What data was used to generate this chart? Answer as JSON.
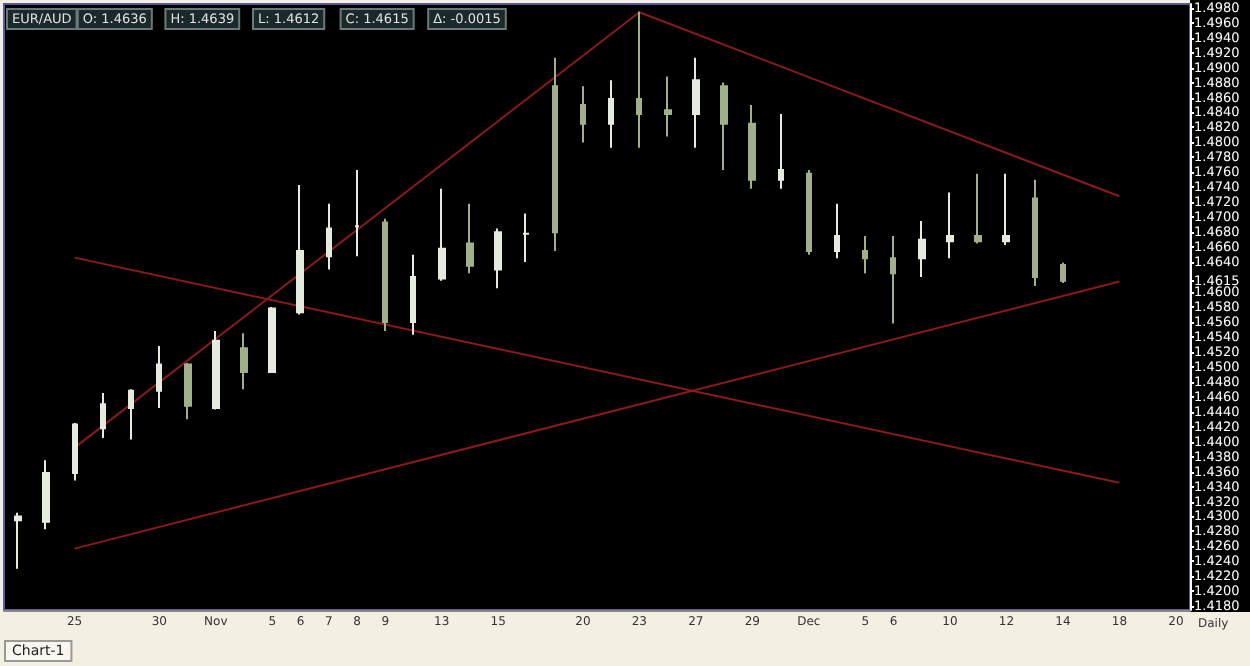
{
  "chart_data": {
    "type": "candlestick",
    "title": "EUR/AUD",
    "categories": [
      null,
      null,
      "25",
      null,
      null,
      "30",
      null,
      "Nov",
      null,
      "5",
      "6",
      "7",
      "8",
      "9",
      null,
      "13",
      null,
      "15",
      null,
      null,
      "20",
      null,
      "23",
      null,
      "27",
      null,
      "29",
      null,
      "Dec",
      null,
      "5",
      "6",
      null,
      "10",
      null,
      "12",
      null,
      "14",
      null,
      "18",
      null,
      "20"
    ],
    "ohlc": [
      [
        1.4295,
        1.4305,
        1.423,
        1.43
      ],
      [
        1.4293,
        1.4375,
        1.4283,
        1.4358
      ],
      [
        1.4358,
        1.4425,
        1.4348,
        1.4423
      ],
      [
        1.4418,
        1.4465,
        1.4405,
        1.445
      ],
      [
        1.4445,
        1.447,
        1.4403,
        1.4468
      ],
      [
        1.4468,
        1.4528,
        1.4445,
        1.4503
      ],
      [
        1.4503,
        1.4505,
        1.443,
        1.4448
      ],
      [
        1.4445,
        1.4548,
        1.4443,
        1.4535
      ],
      [
        1.4525,
        1.4545,
        1.447,
        1.4493
      ],
      [
        1.4493,
        1.458,
        1.4493,
        1.4578
      ],
      [
        1.4573,
        1.4743,
        1.457,
        1.4655
      ],
      [
        1.4648,
        1.4718,
        1.463,
        1.4685
      ],
      [
        1.4688,
        1.4763,
        1.4648,
        1.4688
      ],
      [
        1.4693,
        1.4698,
        1.4548,
        1.456
      ],
      [
        1.456,
        1.465,
        1.4543,
        1.462
      ],
      [
        1.4618,
        1.4738,
        1.4615,
        1.4658
      ],
      [
        1.4665,
        1.4718,
        1.4625,
        1.4635
      ],
      [
        1.463,
        1.4685,
        1.4605,
        1.468
      ],
      [
        1.4678,
        1.4705,
        1.464,
        1.4678
      ],
      [
        1.4875,
        1.4913,
        1.4655,
        1.468
      ],
      [
        1.485,
        1.4875,
        1.48,
        1.4825
      ],
      [
        1.4825,
        1.4883,
        1.4793,
        1.4858
      ],
      [
        1.4858,
        1.4975,
        1.4793,
        1.4838
      ],
      [
        1.4843,
        1.4888,
        1.4808,
        1.4838
      ],
      [
        1.4838,
        1.4913,
        1.4793,
        1.4883
      ],
      [
        1.4875,
        1.488,
        1.4763,
        1.4825
      ],
      [
        1.4825,
        1.485,
        1.4738,
        1.475
      ],
      [
        1.475,
        1.4838,
        1.4738,
        1.4763
      ],
      [
        1.4758,
        1.4763,
        1.465,
        1.4655
      ],
      [
        1.4655,
        1.4718,
        1.4645,
        1.4675
      ],
      [
        1.4655,
        1.4675,
        1.4625,
        1.4645
      ],
      [
        1.4645,
        1.4675,
        1.4558,
        1.4625
      ],
      [
        1.4645,
        1.4695,
        1.462,
        1.467
      ],
      [
        1.4668,
        1.4733,
        1.4645,
        1.4675
      ],
      [
        1.4675,
        1.4758,
        1.4665,
        1.4668
      ],
      [
        1.4668,
        1.4758,
        1.4663,
        1.4675
      ],
      [
        1.4725,
        1.475,
        1.4608,
        1.462
      ],
      [
        1.4636,
        1.4639,
        1.4612,
        1.4615
      ],
      null,
      null,
      null,
      null
    ],
    "colors": [
      "#e4eadc",
      "#e4eadc",
      "#e4eadc",
      "#e4eadc",
      "#e4eadc",
      "#e4eadc",
      "#9fb08a",
      "#e4eadc",
      "#9fb08a",
      "#e4eadc",
      "#e4eadc",
      "#e4eadc",
      "#e4eadc",
      "#9fb08a",
      "#e4eadc",
      "#e4eadc",
      "#9fb08a",
      "#e4eadc",
      "#e4eadc",
      "#9fb08a",
      "#9fb08a",
      "#e4eadc",
      "#9fb08a",
      "#9fb08a",
      "#e4eadc",
      "#9fb08a",
      "#9fb08a",
      "#e4eadc",
      "#9fb08a",
      "#e4eadc",
      "#9fb08a",
      "#9fb08a",
      "#e4eadc",
      "#e4eadc",
      "#9fb08a",
      "#e4eadc",
      "#9fb08a",
      "#9fb08a",
      null,
      null,
      null,
      null
    ],
    "series": [
      {
        "type": "line",
        "color": "#8b1a1a",
        "x": [
          "25",
          "23"
        ],
        "values": [
          1.4392,
          1.4974
        ]
      },
      {
        "type": "line",
        "color": "#8b1a1a",
        "x": [
          "23",
          "18"
        ],
        "values": [
          1.4974,
          1.4728
        ]
      },
      {
        "type": "line",
        "color": "#8b1a1a",
        "x": [
          "25",
          "18"
        ],
        "values": [
          1.4646,
          1.4345
        ]
      },
      {
        "type": "line",
        "color": "#8b1a1a",
        "x": [
          "25",
          "18"
        ],
        "values": [
          1.4257,
          1.4614
        ]
      }
    ],
    "ylim": [
      1.4175,
      1.4985
    ],
    "yticks": [
      {
        "value": 1.418,
        "label": "1.4180"
      },
      {
        "value": 1.42,
        "label": "1.4200"
      },
      {
        "value": 1.422,
        "label": "1.4220"
      },
      {
        "value": 1.424,
        "label": "1.4240"
      },
      {
        "value": 1.426,
        "label": "1.4260"
      },
      {
        "value": 1.428,
        "label": "1.4280"
      },
      {
        "value": 1.43,
        "label": "1.4300"
      },
      {
        "value": 1.432,
        "label": "1.4320"
      },
      {
        "value": 1.434,
        "label": "1.4340"
      },
      {
        "value": 1.436,
        "label": "1.4360"
      },
      {
        "value": 1.438,
        "label": "1.4380"
      },
      {
        "value": 1.44,
        "label": "1.4400"
      },
      {
        "value": 1.442,
        "label": "1.4420"
      },
      {
        "value": 1.444,
        "label": "1.4440"
      },
      {
        "value": 1.446,
        "label": "1.4460"
      },
      {
        "value": 1.448,
        "label": "1.4480"
      },
      {
        "value": 1.45,
        "label": "1.4500"
      },
      {
        "value": 1.452,
        "label": "1.4520"
      },
      {
        "value": 1.454,
        "label": "1.4540"
      },
      {
        "value": 1.456,
        "label": "1.4560"
      },
      {
        "value": 1.458,
        "label": "1.4580"
      },
      {
        "value": 1.46,
        "label": "1.4600"
      },
      {
        "value": 1.4615,
        "label": "1.4615"
      },
      {
        "value": 1.464,
        "label": "1.4640"
      },
      {
        "value": 1.466,
        "label": "1.4660"
      },
      {
        "value": 1.468,
        "label": "1.4680"
      },
      {
        "value": 1.47,
        "label": "1.4700"
      },
      {
        "value": 1.472,
        "label": "1.4720"
      },
      {
        "value": 1.474,
        "label": "1.4740"
      },
      {
        "value": 1.476,
        "label": "1.4760"
      },
      {
        "value": 1.478,
        "label": "1.4780"
      },
      {
        "value": 1.48,
        "label": "1.4800"
      },
      {
        "value": 1.482,
        "label": "1.4820"
      },
      {
        "value": 1.484,
        "label": "1.4840"
      },
      {
        "value": 1.486,
        "label": "1.4860"
      },
      {
        "value": 1.488,
        "label": "1.4880"
      },
      {
        "value": 1.49,
        "label": "1.4900"
      },
      {
        "value": 1.492,
        "label": "1.4920"
      },
      {
        "value": 1.494,
        "label": "1.4940"
      },
      {
        "value": 1.496,
        "label": "1.4960"
      },
      {
        "value": 1.498,
        "label": "1.4980"
      }
    ],
    "annotations": [
      "O: 1.4636",
      "H: 1.4639",
      "L: 1.4612",
      "C: 1.4615",
      "Δ: -0.0015",
      "Daily",
      "Chart-1"
    ],
    "grid": false
  }
}
